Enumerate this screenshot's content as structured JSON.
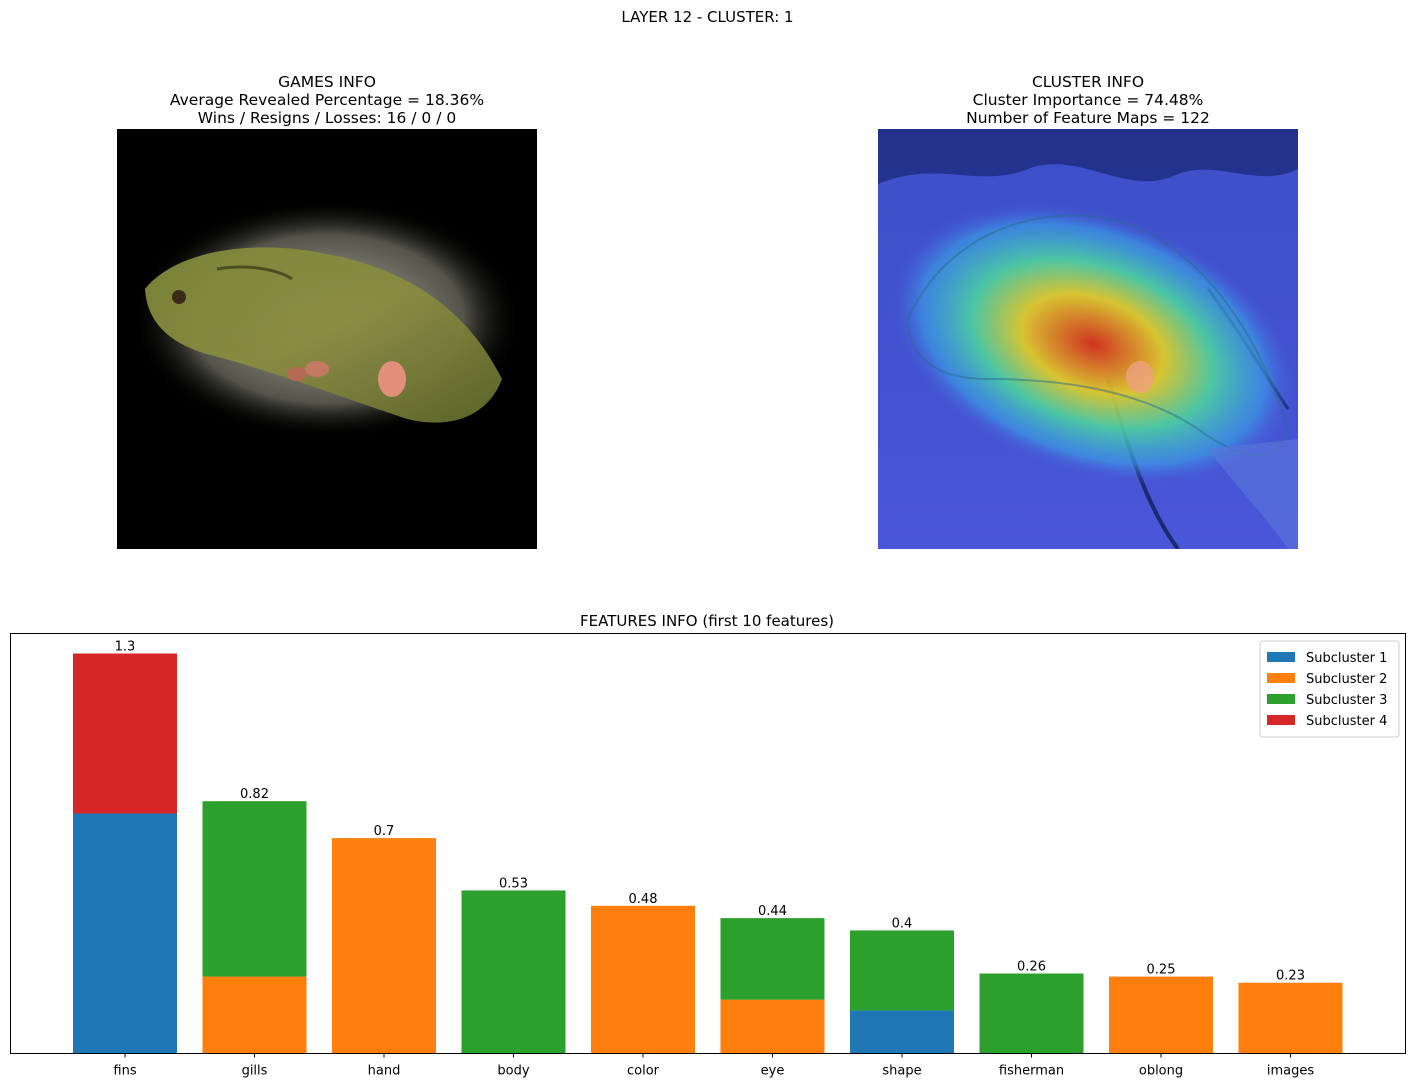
{
  "suptitle": "LAYER 12 - CLUSTER: 1",
  "games_info": {
    "title": "GAMES INFO",
    "line1": "Average Revealed Percentage = 18.36%",
    "line2": "Wins / Resigns / Losses: 16 / 0 / 0"
  },
  "cluster_info": {
    "title": "CLUSTER INFO",
    "line1": "Cluster Importance = 74.48%",
    "line2": "Number of Feature Maps = 122"
  },
  "features_title": "FEATURES INFO (first 10 features)",
  "colors": {
    "subcluster_1": "#1f77b4",
    "subcluster_2": "#ff7f0e",
    "subcluster_3": "#2ca02c",
    "subcluster_4": "#d62728"
  },
  "chart_data": {
    "type": "bar",
    "stacked": true,
    "title": "FEATURES INFO (first 10 features)",
    "categories": [
      "fins",
      "gills",
      "hand",
      "body",
      "color",
      "eye",
      "shape",
      "fisherman",
      "oblong",
      "images"
    ],
    "totals": [
      1.3,
      0.82,
      0.7,
      0.53,
      0.48,
      0.44,
      0.4,
      0.26,
      0.25,
      0.23
    ],
    "total_labels": [
      "1.3",
      "0.82",
      "0.7",
      "0.53",
      "0.48",
      "0.44",
      "0.4",
      "0.26",
      "0.25",
      "0.23"
    ],
    "series": [
      {
        "name": "Subcluster 1",
        "color": "#1f77b4",
        "values": [
          0.78,
          0,
          0,
          0,
          0,
          0,
          0.14,
          0,
          0,
          0
        ]
      },
      {
        "name": "Subcluster 2",
        "color": "#ff7f0e",
        "values": [
          0,
          0.25,
          0.7,
          0,
          0.48,
          0.175,
          0,
          0,
          0.25,
          0.23
        ]
      },
      {
        "name": "Subcluster 3",
        "color": "#2ca02c",
        "values": [
          0,
          0.57,
          0,
          0.53,
          0,
          0.265,
          0.26,
          0.26,
          0,
          0
        ]
      },
      {
        "name": "Subcluster 4",
        "color": "#d62728",
        "values": [
          0.52,
          0,
          0,
          0,
          0,
          0,
          0,
          0,
          0,
          0
        ]
      }
    ],
    "ylim": [
      0,
      1.365
    ],
    "y_axis_visible": false,
    "grid": false,
    "legend_position": "top-right"
  }
}
